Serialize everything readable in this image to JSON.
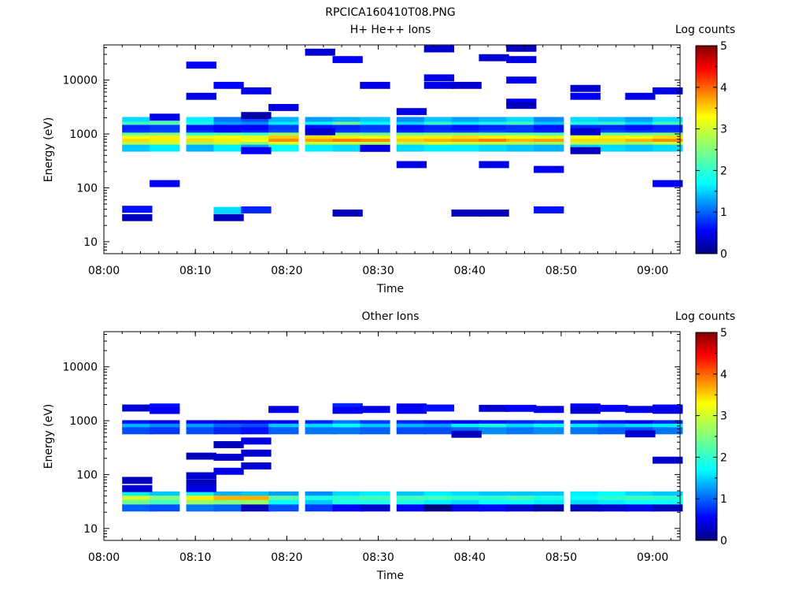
{
  "figure": {
    "title": "RPCICA160410T08.PNG"
  },
  "colorbar": {
    "label": "Log counts",
    "ticks": [
      "0",
      "1",
      "2",
      "3",
      "4",
      "5"
    ],
    "range": [
      0,
      5
    ],
    "colormap": "jet"
  },
  "chart_data": [
    {
      "type": "heatmap",
      "title": "H+ He++ Ions",
      "xlabel": "Time",
      "ylabel": "Energy (eV)",
      "yscale": "log",
      "xlim": [
        "08:00",
        "09:03"
      ],
      "ylim": [
        6,
        45000
      ],
      "xticks": [
        "08:00",
        "08:10",
        "08:20",
        "08:30",
        "08:40",
        "08:50",
        "09:00"
      ],
      "yticks": [
        "10",
        "100",
        "1000",
        "10000"
      ],
      "time_bins": [
        "08:02",
        "08:05",
        "08:09",
        "08:12",
        "08:15",
        "08:18",
        "08:22",
        "08:25",
        "08:28",
        "08:32",
        "08:35",
        "08:38",
        "08:41",
        "08:44",
        "08:47",
        "08:51",
        "08:54",
        "08:57",
        "09:00"
      ],
      "steady_band_bins_eV": [
        {
          "e": 1780,
          "v": [
            1.7,
            2.1,
            1.8,
            1.2,
            1.0,
            1.5,
            1.4,
            1.5,
            1.6,
            1.3,
            1.6,
            1.4,
            1.5,
            1.7,
            1.3,
            1.7,
            1.6,
            1.4,
            1.7
          ]
        },
        {
          "e": 1450,
          "v": [
            2.2,
            2.3,
            2.0,
            1.4,
            1.3,
            1.8,
            1.9,
            2.4,
            1.9,
            1.7,
            2.1,
            1.8,
            2.0,
            2.2,
            1.6,
            2.0,
            2.1,
            1.7,
            2.2
          ]
        },
        {
          "e": 1270,
          "v": [
            0.8,
            0.9,
            0.7,
            0.6,
            0.6,
            0.9,
            0.7,
            0.8,
            0.9,
            0.7,
            0.8,
            0.7,
            0.8,
            0.9,
            0.7,
            0.8,
            0.8,
            0.7,
            0.8
          ]
        },
        {
          "e": 1000,
          "v": [
            0.9,
            1.0,
            0.9,
            0.7,
            0.8,
            1.0,
            0.9,
            0.9,
            1.0,
            0.8,
            0.9,
            0.9,
            1.0,
            0.9,
            0.8,
            0.9,
            1.0,
            0.9,
            0.9
          ]
        },
        {
          "e": 910,
          "v": [
            2.4,
            2.5,
            2.2,
            2.3,
            2.2,
            2.6,
            2.5,
            2.5,
            2.4,
            2.4,
            2.5,
            2.5,
            2.4,
            2.4,
            2.3,
            2.3,
            2.4,
            2.4,
            2.5
          ]
        },
        {
          "e": 800,
          "v": [
            3.1,
            3.2,
            3.0,
            3.1,
            3.0,
            3.4,
            3.3,
            3.2,
            3.1,
            3.2,
            3.2,
            3.3,
            3.2,
            3.1,
            3.0,
            3.1,
            3.2,
            3.1,
            3.3
          ]
        },
        {
          "e": 700,
          "v": [
            3.3,
            3.2,
            3.3,
            3.2,
            3.1,
            3.7,
            3.6,
            3.8,
            3.7,
            3.4,
            3.5,
            3.6,
            3.8,
            3.5,
            3.6,
            3.3,
            3.3,
            3.5,
            3.7
          ]
        },
        {
          "e": 615,
          "v": [
            2.8,
            2.9,
            2.7,
            2.9,
            2.6,
            3.0,
            2.9,
            2.9,
            2.8,
            2.8,
            3.0,
            2.9,
            2.9,
            2.8,
            2.7,
            2.8,
            2.8,
            2.7,
            2.9
          ]
        },
        {
          "e": 545,
          "v": [
            1.6,
            1.8,
            1.5,
            1.8,
            1.4,
            1.9,
            1.8,
            1.7,
            1.6,
            1.7,
            1.8,
            1.8,
            1.7,
            1.6,
            1.5,
            1.6,
            1.7,
            1.6,
            1.7
          ]
        }
      ],
      "sparse_cells": [
        {
          "t": "08:02",
          "e": 40,
          "v": 0.7
        },
        {
          "t": "08:02",
          "e": 28,
          "v": 0.3
        },
        {
          "t": "08:05",
          "e": 2050,
          "v": 0.5
        },
        {
          "t": "08:05",
          "e": 120,
          "v": 0.6
        },
        {
          "t": "08:09",
          "e": 19000,
          "v": 0.6
        },
        {
          "t": "08:09",
          "e": 5000,
          "v": 0.5
        },
        {
          "t": "08:12",
          "e": 8000,
          "v": 0.6
        },
        {
          "t": "08:12",
          "e": 38,
          "v": 1.7
        },
        {
          "t": "08:12",
          "e": 28,
          "v": 0.3
        },
        {
          "t": "08:15",
          "e": 6300,
          "v": 0.5
        },
        {
          "t": "08:15",
          "e": 2200,
          "v": 0.2
        },
        {
          "t": "08:15",
          "e": 490,
          "v": 0.6
        },
        {
          "t": "08:15",
          "e": 39,
          "v": 0.8
        },
        {
          "t": "08:18",
          "e": 3100,
          "v": 0.5
        },
        {
          "t": "08:22",
          "e": 33000,
          "v": 0.4
        },
        {
          "t": "08:22",
          "e": 1100,
          "v": 0.4
        },
        {
          "t": "08:25",
          "e": 24000,
          "v": 0.6
        },
        {
          "t": "08:25",
          "e": 34,
          "v": 0.3
        },
        {
          "t": "08:28",
          "e": 8000,
          "v": 0.5
        },
        {
          "t": "08:28",
          "e": 540,
          "v": 0.5
        },
        {
          "t": "08:32",
          "e": 2600,
          "v": 0.5
        },
        {
          "t": "08:32",
          "e": 270,
          "v": 0.5
        },
        {
          "t": "08:35",
          "e": 38000,
          "v": 0.4
        },
        {
          "t": "08:35",
          "e": 11000,
          "v": 0.5
        },
        {
          "t": "08:35",
          "e": 8000,
          "v": 0.5
        },
        {
          "t": "08:38",
          "e": 8000,
          "v": 0.4
        },
        {
          "t": "08:38",
          "e": 34,
          "v": 0.3
        },
        {
          "t": "08:41",
          "e": 26000,
          "v": 0.4
        },
        {
          "t": "08:41",
          "e": 270,
          "v": 0.5
        },
        {
          "t": "08:41",
          "e": 34,
          "v": 0.3
        },
        {
          "t": "08:44",
          "e": 39000,
          "v": 0.3
        },
        {
          "t": "08:44",
          "e": 24000,
          "v": 0.5
        },
        {
          "t": "08:44",
          "e": 10000,
          "v": 0.5
        },
        {
          "t": "08:44",
          "e": 3900,
          "v": 0.6
        },
        {
          "t": "08:44",
          "e": 3400,
          "v": 0.3
        },
        {
          "t": "08:47",
          "e": 220,
          "v": 0.6
        },
        {
          "t": "08:47",
          "e": 39,
          "v": 0.7
        },
        {
          "t": "08:51",
          "e": 7000,
          "v": 0.4
        },
        {
          "t": "08:51",
          "e": 5000,
          "v": 0.6
        },
        {
          "t": "08:51",
          "e": 1100,
          "v": 0.4
        },
        {
          "t": "08:51",
          "e": 490,
          "v": 0.3
        },
        {
          "t": "08:57",
          "e": 5000,
          "v": 0.5
        },
        {
          "t": "09:00",
          "e": 6300,
          "v": 0.5
        },
        {
          "t": "09:00",
          "e": 120,
          "v": 0.6
        }
      ]
    },
    {
      "type": "heatmap",
      "title": "Other Ions",
      "xlabel": "Time",
      "ylabel": "Energy (eV)",
      "yscale": "log",
      "xlim": [
        "08:00",
        "09:03"
      ],
      "ylim": [
        6,
        45000
      ],
      "xticks": [
        "08:00",
        "08:10",
        "08:20",
        "08:30",
        "08:40",
        "08:50",
        "09:00"
      ],
      "yticks": [
        "10",
        "100",
        "1000",
        "10000"
      ],
      "time_bins": [
        "08:02",
        "08:05",
        "08:09",
        "08:12",
        "08:15",
        "08:18",
        "08:22",
        "08:25",
        "08:28",
        "08:32",
        "08:35",
        "08:38",
        "08:41",
        "08:44",
        "08:47",
        "08:51",
        "08:54",
        "08:57",
        "09:00"
      ],
      "steady_band_bins_eV": [
        {
          "e": 880,
          "v": [
            0.7,
            0.5,
            0.6,
            0.5,
            0.5,
            0.6,
            0.8,
            1.2,
            0.9,
            0.8,
            0.7,
            0.6,
            0.7,
            0.8,
            0.9,
            0.8,
            0.7,
            0.6,
            0.8
          ]
        },
        {
          "e": 760,
          "v": [
            1.5,
            1.3,
            1.4,
            1.1,
            1.0,
            1.6,
            1.7,
            1.9,
            1.6,
            1.5,
            1.4,
            1.8,
            2.0,
            1.7,
            1.9,
            1.8,
            1.6,
            1.7,
            1.8
          ]
        },
        {
          "e": 650,
          "v": [
            1.0,
            0.9,
            1.0,
            0.8,
            0.7,
            1.1,
            1.2,
            1.2,
            1.1,
            1.0,
            1.0,
            1.1,
            1.3,
            1.2,
            1.3,
            1.2,
            1.1,
            1.0,
            1.2
          ]
        },
        {
          "e": 42,
          "v": [
            1.8,
            1.6,
            1.9,
            1.5,
            1.6,
            1.4,
            1.3,
            1.7,
            1.8,
            1.6,
            1.8,
            1.7,
            1.6,
            1.6,
            1.6,
            1.8,
            1.9,
            1.7,
            1.6
          ]
        },
        {
          "e": 35,
          "v": [
            2.9,
            2.5,
            3.2,
            3.5,
            3.5,
            2.3,
            2.0,
            2.1,
            2.2,
            2.2,
            2.2,
            2.1,
            2.1,
            2.2,
            2.0,
            1.9,
            2.1,
            2.2,
            2.1
          ]
        },
        {
          "e": 29,
          "v": [
            2.4,
            2.2,
            2.6,
            2.5,
            2.6,
            1.9,
            1.6,
            2.0,
            2.0,
            2.0,
            1.8,
            1.7,
            1.9,
            1.9,
            1.8,
            1.7,
            1.8,
            1.9,
            1.9
          ]
        },
        {
          "e": 24,
          "v": [
            1.1,
            1.0,
            1.2,
            1.1,
            0.3,
            1.0,
            0.9,
            0.6,
            0.4,
            0.6,
            0.0,
            0.5,
            0.6,
            0.4,
            0.2,
            0.3,
            0.4,
            0.5,
            0.3
          ]
        }
      ],
      "sparse_cells": [
        {
          "t": "08:02",
          "e": 1720,
          "v": 0.4
        },
        {
          "t": "08:02",
          "e": 78,
          "v": 0.3
        },
        {
          "t": "08:02",
          "e": 55,
          "v": 0.4
        },
        {
          "t": "08:05",
          "e": 1800,
          "v": 0.7
        },
        {
          "t": "08:05",
          "e": 1550,
          "v": 0.6
        },
        {
          "t": "08:09",
          "e": 220,
          "v": 0.3
        },
        {
          "t": "08:09",
          "e": 95,
          "v": 0.4
        },
        {
          "t": "08:09",
          "e": 70,
          "v": 0.3
        },
        {
          "t": "08:09",
          "e": 55,
          "v": 0.5
        },
        {
          "t": "08:12",
          "e": 360,
          "v": 0.3
        },
        {
          "t": "08:12",
          "e": 210,
          "v": 0.4
        },
        {
          "t": "08:12",
          "e": 115,
          "v": 0.5
        },
        {
          "t": "08:15",
          "e": 420,
          "v": 0.5
        },
        {
          "t": "08:15",
          "e": 250,
          "v": 0.4
        },
        {
          "t": "08:15",
          "e": 145,
          "v": 0.4
        },
        {
          "t": "08:18",
          "e": 1620,
          "v": 0.5
        },
        {
          "t": "08:25",
          "e": 1820,
          "v": 0.8
        },
        {
          "t": "08:25",
          "e": 1560,
          "v": 0.6
        },
        {
          "t": "08:28",
          "e": 1620,
          "v": 0.5
        },
        {
          "t": "08:32",
          "e": 1800,
          "v": 0.5
        },
        {
          "t": "08:32",
          "e": 1560,
          "v": 0.6
        },
        {
          "t": "08:35",
          "e": 1720,
          "v": 0.7
        },
        {
          "t": "08:38",
          "e": 560,
          "v": 0.3
        },
        {
          "t": "08:41",
          "e": 1700,
          "v": 0.4
        },
        {
          "t": "08:44",
          "e": 1700,
          "v": 0.6
        },
        {
          "t": "08:47",
          "e": 1620,
          "v": 0.5
        },
        {
          "t": "08:51",
          "e": 1800,
          "v": 0.6
        },
        {
          "t": "08:51",
          "e": 1560,
          "v": 0.4
        },
        {
          "t": "08:54",
          "e": 1700,
          "v": 0.6
        },
        {
          "t": "08:57",
          "e": 1620,
          "v": 0.5
        },
        {
          "t": "08:57",
          "e": 570,
          "v": 0.4
        },
        {
          "t": "09:00",
          "e": 1720,
          "v": 0.6
        },
        {
          "t": "09:00",
          "e": 1560,
          "v": 0.5
        },
        {
          "t": "09:00",
          "e": 185,
          "v": 0.4
        }
      ]
    }
  ]
}
